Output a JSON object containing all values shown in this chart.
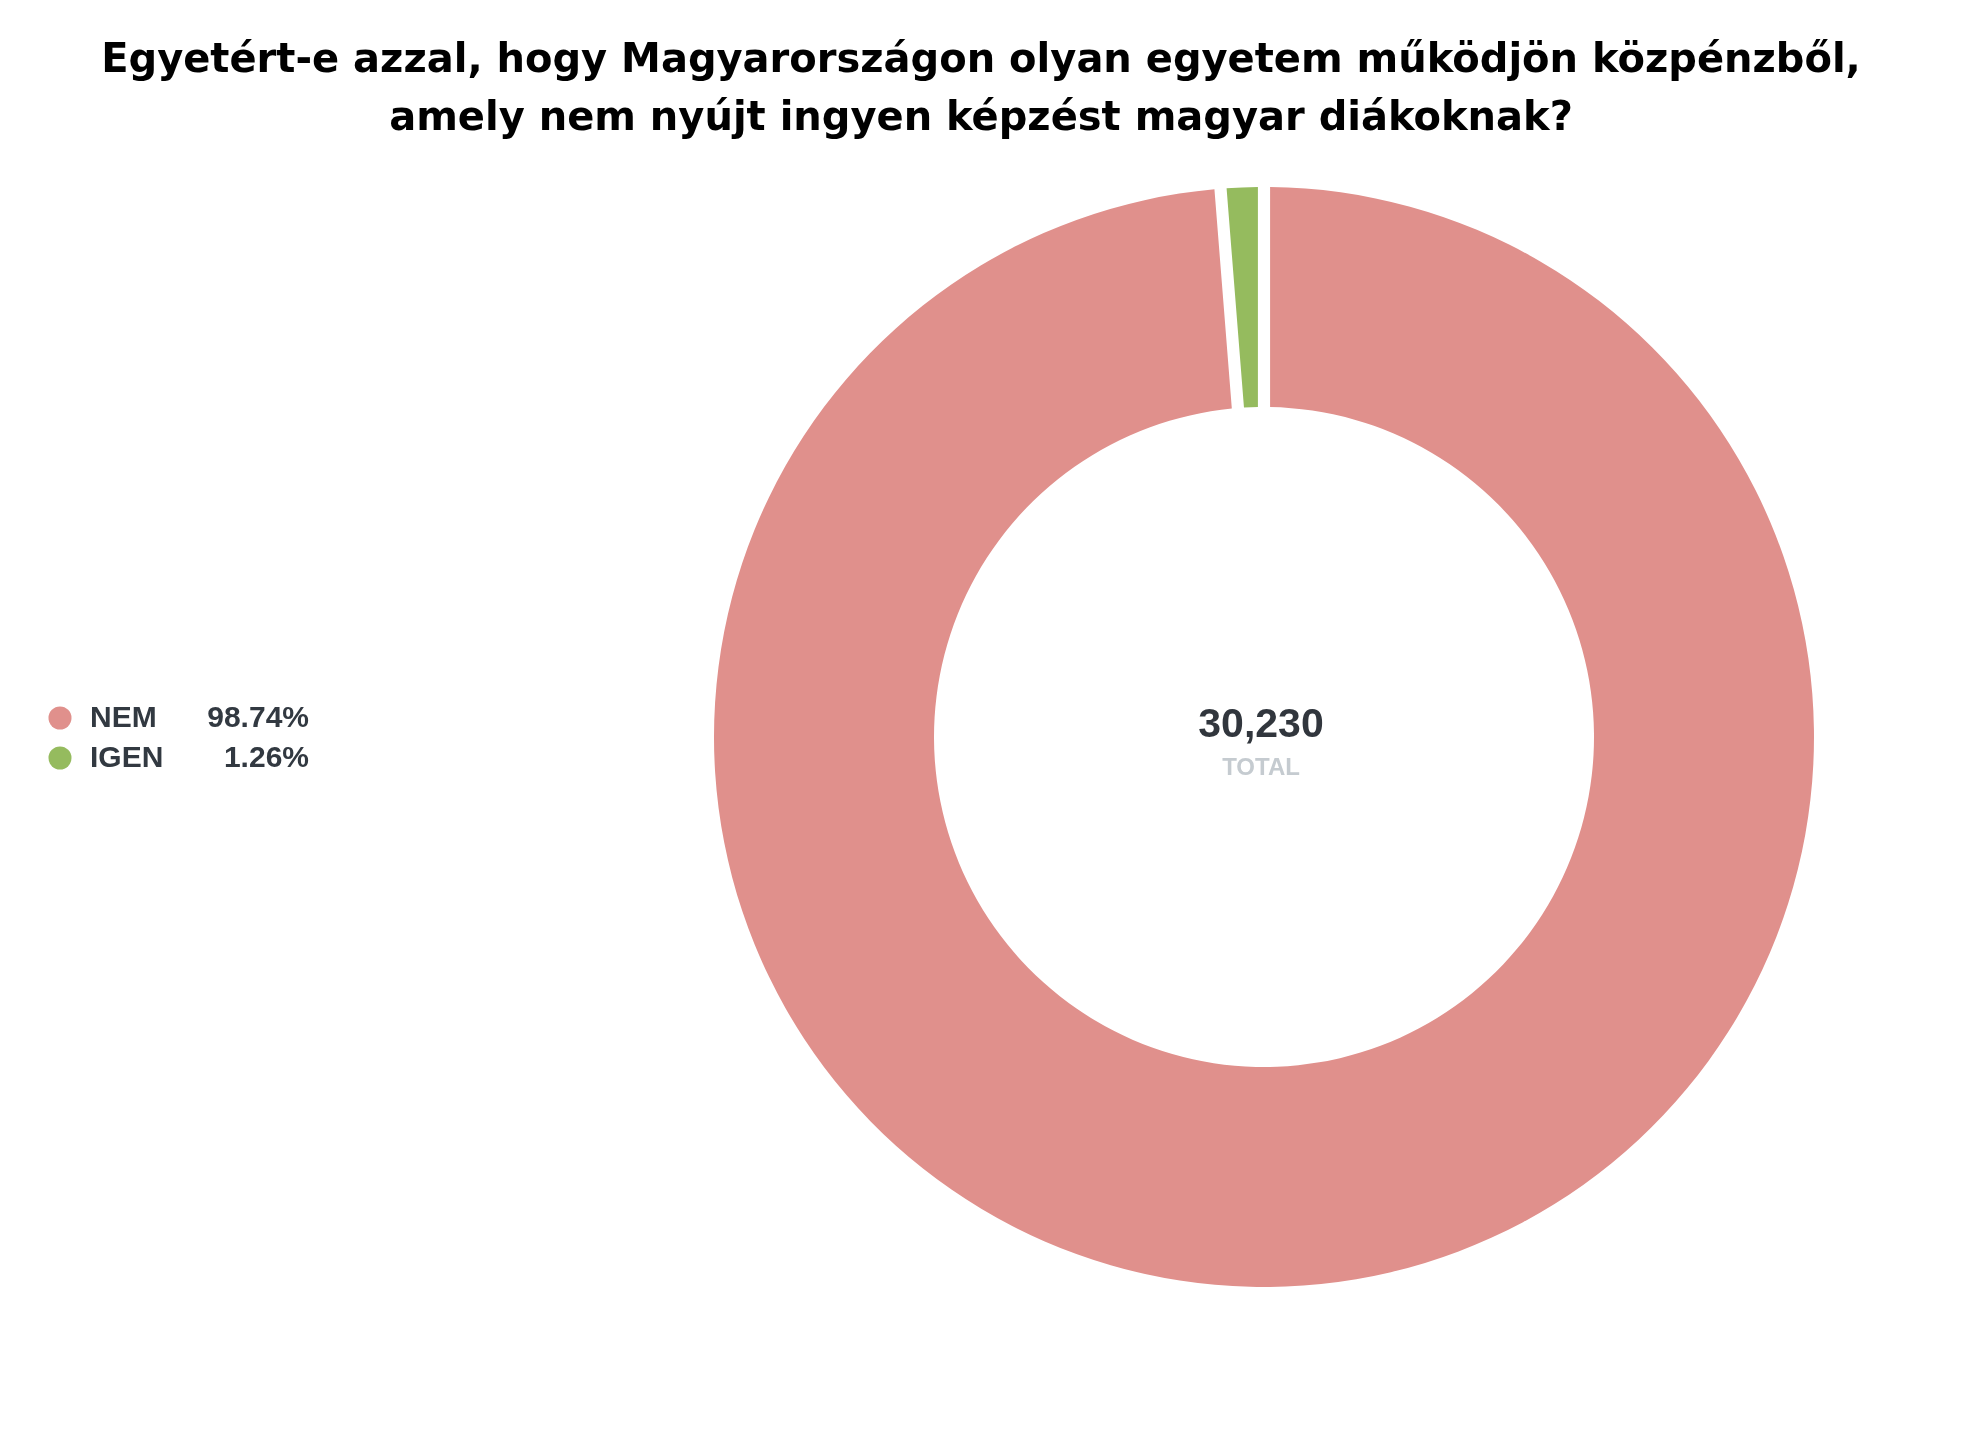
{
  "chart_data": {
    "type": "donut",
    "title": "Egyetért-e azzal, hogy Magyarországon olyan egyetem működjön közpénzből, amely nem nyújt ingyen képzést magyar diákoknak?",
    "categories": [
      "NEM",
      "IGEN"
    ],
    "values": [
      98.74,
      1.26
    ],
    "colors": [
      "#e0908c",
      "#95bb5e"
    ],
    "value_labels": [
      "98.74%",
      "1.26%"
    ],
    "annotations": [
      "30,230",
      "TOTAL"
    ],
    "legend": "left"
  }
}
